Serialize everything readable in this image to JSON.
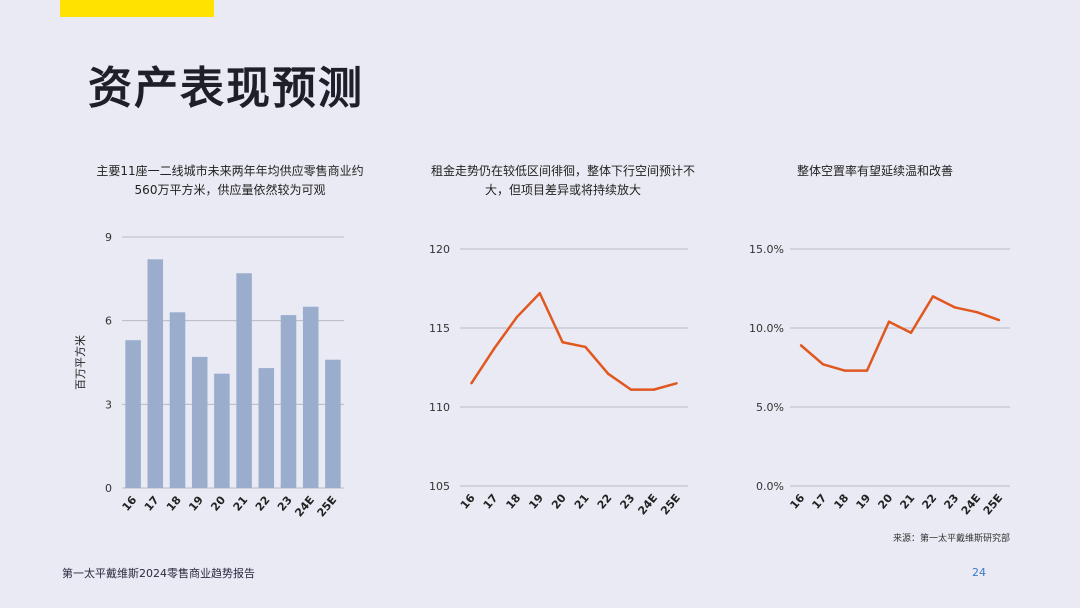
{
  "page": {
    "title": "资产表现预测",
    "footer": "第一太平戴维斯2024零售商业趋势报告",
    "page_number": "24",
    "source": "来源：第一太平戴维斯研究部",
    "accent_color": "#ffe200"
  },
  "chart_data": [
    {
      "type": "bar",
      "title": "主要11座一二线城市未来两年年均供应零售商业约560万平方米，供应量依然较为可观",
      "ylabel": "百万平方米",
      "categories": [
        "16",
        "17",
        "18",
        "19",
        "20",
        "21",
        "22",
        "23",
        "24E",
        "25E"
      ],
      "values": [
        5.3,
        8.2,
        6.3,
        4.7,
        4.1,
        7.7,
        4.3,
        6.2,
        6.5,
        4.6
      ],
      "yticks": [
        0,
        3,
        6,
        9
      ],
      "ylim": [
        0,
        9
      ],
      "color": "#9badcc",
      "grid": true
    },
    {
      "type": "line",
      "title": "租金走势仍在较低区间徘徊，整体下行空间预计不大，但项目差异或将持续放大",
      "categories": [
        "16",
        "17",
        "18",
        "19",
        "20",
        "21",
        "22",
        "23",
        "24E",
        "25E"
      ],
      "values": [
        111.5,
        113.7,
        115.7,
        117.2,
        114.1,
        113.8,
        112.1,
        111.1,
        111.1,
        111.5
      ],
      "yticks": [
        105,
        110,
        115,
        120
      ],
      "ylim": [
        105,
        120
      ],
      "color": "#e0571f",
      "grid": true
    },
    {
      "type": "line",
      "title": "整体空置率有望延续温和改善",
      "categories": [
        "16",
        "17",
        "18",
        "19",
        "20",
        "21",
        "22",
        "23",
        "24E",
        "25E"
      ],
      "values": [
        8.9,
        7.7,
        7.3,
        7.3,
        10.4,
        9.7,
        12.0,
        11.3,
        11.0,
        10.5
      ],
      "yticks": [
        0,
        5,
        10,
        15
      ],
      "ytick_labels": [
        "0.0%",
        "5.0%",
        "10.0%",
        "15.0%"
      ],
      "ylim": [
        0,
        15
      ],
      "color": "#e0571f",
      "grid": true
    }
  ]
}
